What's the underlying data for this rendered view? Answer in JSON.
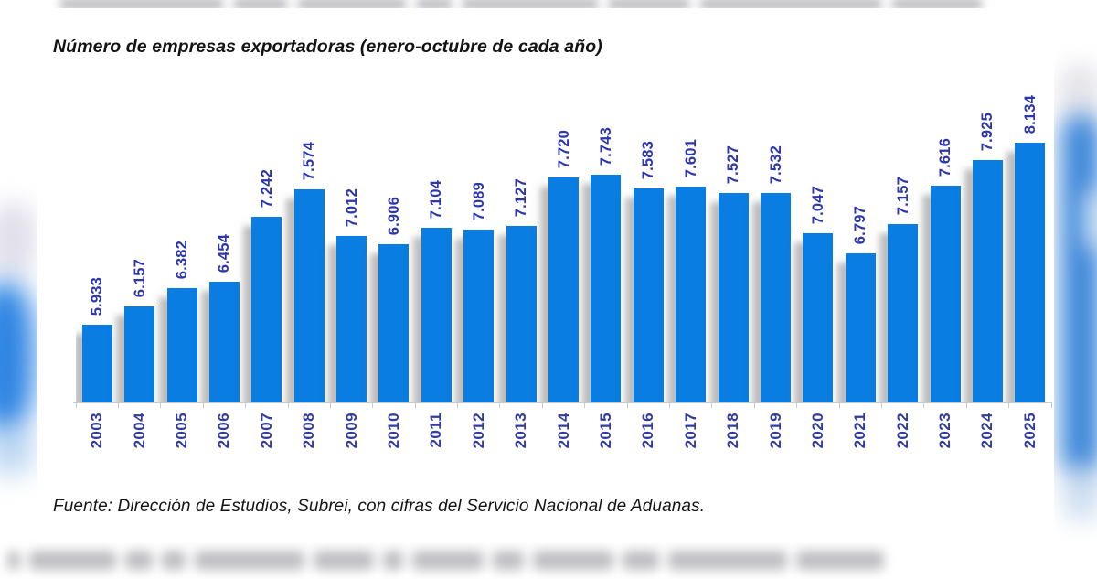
{
  "title": "Número de empresas exportadoras (enero-octubre de cada año)",
  "source": "Fuente: Dirección de Estudios, Subrei, con cifras del Servicio Nacional de Aduanas.",
  "chart_data": {
    "type": "bar",
    "title": "Número de empresas exportadoras (enero-octubre de cada año)",
    "categories": [
      "2003",
      "2004",
      "2005",
      "2006",
      "2007",
      "2008",
      "2009",
      "2010",
      "2011",
      "2012",
      "2013",
      "2014",
      "2015",
      "2016",
      "2017",
      "2018",
      "2019",
      "2020",
      "2021",
      "2022",
      "2023",
      "2024",
      "2025"
    ],
    "values": [
      5933,
      6157,
      6382,
      6454,
      7242,
      7574,
      7012,
      6906,
      7104,
      7089,
      7127,
      7720,
      7743,
      7583,
      7601,
      7527,
      7532,
      7047,
      6797,
      7157,
      7616,
      7925,
      8134
    ],
    "value_labels": [
      "5.933",
      "6.157",
      "6.382",
      "6.454",
      "7.242",
      "7.574",
      "7.012",
      "6.906",
      "7.104",
      "7.089",
      "7.127",
      "7.720",
      "7.743",
      "7.583",
      "7.601",
      "7.527",
      "7.532",
      "7.047",
      "6.797",
      "7.157",
      "7.616",
      "7.925",
      "8.134"
    ],
    "xlabel": "",
    "ylabel": "",
    "ylim": [
      5000,
      8750
    ],
    "grid": false,
    "legend": false,
    "data_labels_rotated_degrees": 90,
    "bar_color": "#0a7de2",
    "data_label_color": "#2c36ad",
    "axis_label_color": "#333b9e",
    "axis_line_color": "#c9c9c9"
  }
}
